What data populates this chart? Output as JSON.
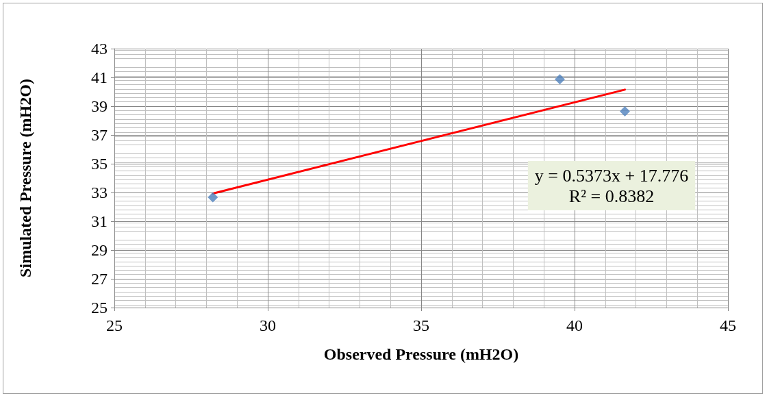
{
  "chart_data": {
    "type": "scatter",
    "xlabel": "Observed Pressure (mH2O)",
    "ylabel": "Simulated Pressure (mH2O)",
    "xlim": [
      25,
      45
    ],
    "xticks": [
      25,
      30,
      35,
      40,
      45
    ],
    "ylim": [
      25,
      43
    ],
    "yticks": [
      25,
      27,
      29,
      31,
      33,
      35,
      37,
      39,
      41,
      43
    ],
    "grid": true,
    "marker": "diamond",
    "series": [
      {
        "color": "#4f81bd",
        "x": [
          28.21,
          39.52,
          41.64
        ],
        "values": [
          32.67,
          40.87,
          38.64
        ]
      },
      {
        "type": "line",
        "color": "#ff0000",
        "marker": "none",
        "line_style": "solid",
        "x": [
          28.21,
          41.64
        ],
        "values": [
          32.93,
          40.15
        ]
      }
    ],
    "annotations": [
      "y = 0.5373x + 17.776\nR² = 0.8382"
    ]
  }
}
